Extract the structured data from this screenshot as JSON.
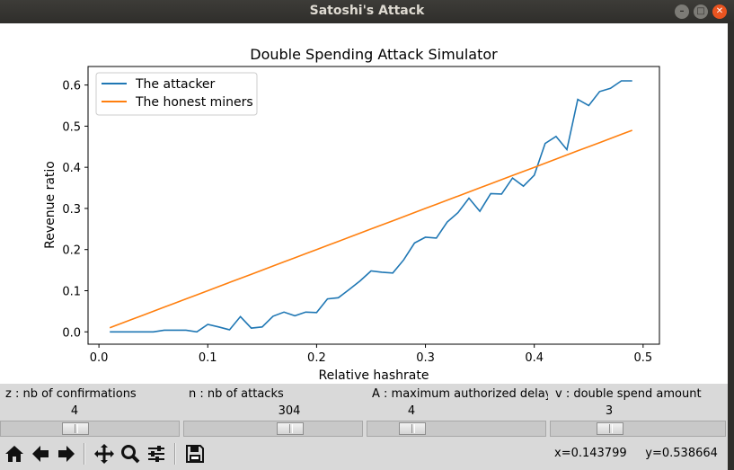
{
  "window": {
    "title": "Satoshi's Attack"
  },
  "chart_data": {
    "type": "line",
    "title": "Double Spending Attack Simulator",
    "xlabel": "Relative hashrate",
    "ylabel": "Revenue ratio",
    "xlim": [
      -0.01,
      0.515
    ],
    "ylim": [
      -0.03,
      0.645
    ],
    "xticks": [
      0.0,
      0.1,
      0.2,
      0.3,
      0.4,
      0.5
    ],
    "xtick_labels": [
      "0.0",
      "0.1",
      "0.2",
      "0.3",
      "0.4",
      "0.5"
    ],
    "yticks": [
      0.0,
      0.1,
      0.2,
      0.3,
      0.4,
      0.5,
      0.6
    ],
    "ytick_labels": [
      "0.0",
      "0.1",
      "0.2",
      "0.3",
      "0.4",
      "0.5",
      "0.6"
    ],
    "grid": false,
    "legend_position": "upper-left",
    "x": [
      0.01,
      0.02,
      0.03,
      0.04,
      0.05,
      0.06,
      0.07,
      0.08,
      0.09,
      0.1,
      0.11,
      0.12,
      0.13,
      0.14,
      0.15,
      0.16,
      0.17,
      0.18,
      0.19,
      0.2,
      0.21,
      0.22,
      0.23,
      0.24,
      0.25,
      0.26,
      0.27,
      0.28,
      0.29,
      0.3,
      0.31,
      0.32,
      0.33,
      0.34,
      0.35,
      0.36,
      0.37,
      0.38,
      0.39,
      0.4,
      0.41,
      0.42,
      0.43,
      0.44,
      0.45,
      0.46,
      0.47,
      0.48,
      0.49
    ],
    "series": [
      {
        "name": "The attacker",
        "color": "#1f77b4",
        "values": [
          0.0,
          0.0,
          0.0,
          0.0,
          0.0,
          0.004,
          0.004,
          0.004,
          0.0,
          0.018,
          0.012,
          0.005,
          0.037,
          0.009,
          0.012,
          0.038,
          0.048,
          0.039,
          0.048,
          0.047,
          0.08,
          0.083,
          0.103,
          0.124,
          0.148,
          0.145,
          0.143,
          0.175,
          0.216,
          0.23,
          0.228,
          0.267,
          0.29,
          0.325,
          0.293,
          0.336,
          0.335,
          0.374,
          0.354,
          0.381,
          0.458,
          0.475,
          0.443,
          0.565,
          0.55,
          0.584,
          0.592,
          0.61,
          0.61
        ]
      },
      {
        "name": "The honest miners",
        "color": "#ff7f0e",
        "values": [
          0.01,
          0.02,
          0.03,
          0.04,
          0.05,
          0.06,
          0.07,
          0.08,
          0.09,
          0.1,
          0.11,
          0.12,
          0.13,
          0.14,
          0.15,
          0.16,
          0.17,
          0.18,
          0.19,
          0.2,
          0.21,
          0.22,
          0.23,
          0.24,
          0.25,
          0.26,
          0.27,
          0.28,
          0.29,
          0.3,
          0.31,
          0.32,
          0.33,
          0.34,
          0.35,
          0.36,
          0.37,
          0.38,
          0.39,
          0.4,
          0.41,
          0.42,
          0.43,
          0.44,
          0.45,
          0.46,
          0.47,
          0.48,
          0.49
        ]
      }
    ]
  },
  "sliders": [
    {
      "label": "z : nb of confirmations",
      "value": "4",
      "position": 0.55
    },
    {
      "label": "n : nb of attacks",
      "value": "304",
      "position": 0.58
    },
    {
      "label": "A : maximum authorized delay",
      "value": "4",
      "position": 0.22
    },
    {
      "label": "v : double spend amount",
      "value": "3",
      "position": 0.3
    }
  ],
  "toolbar": {
    "buttons": [
      "home-icon",
      "back-icon",
      "forward-icon",
      "pan-icon",
      "zoom-icon",
      "configure-subplots-icon",
      "save-icon"
    ],
    "coords_x": "x=0.143799",
    "coords_y": "y=0.538664"
  }
}
